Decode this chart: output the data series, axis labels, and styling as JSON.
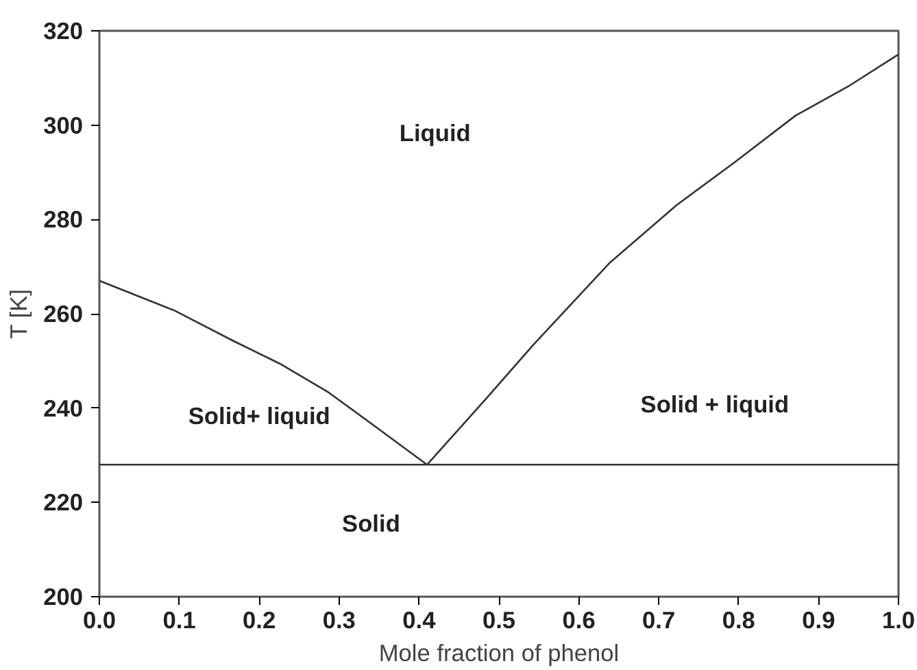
{
  "chart_data": {
    "type": "line",
    "xlabel": "Mole fraction of phenol",
    "ylabel": "T [K]",
    "xlim": [
      0,
      1
    ],
    "ylim": [
      200,
      320
    ],
    "xticks": [
      {
        "value": 0,
        "label": "0.0"
      },
      0.1,
      0.2,
      0.3,
      0.4,
      0.5,
      0.6,
      0.7,
      0.8,
      0.9,
      {
        "value": 1,
        "label": "1.0"
      }
    ],
    "yticks": [
      200,
      220,
      240,
      260,
      280,
      300,
      320
    ],
    "series": [
      {
        "color": "#333333",
        "x": [
          0,
          0.095,
          0.167,
          0.226,
          0.287,
          0.346,
          0.41
        ],
        "values": [
          267,
          260.6,
          254.3,
          249.4,
          243.3,
          236,
          228
        ]
      },
      {
        "color": "#333333",
        "x": [
          0.41,
          0.484,
          0.543,
          0.638,
          0.722,
          0.794,
          0.871,
          0.937,
          1.0
        ],
        "values": [
          228,
          242,
          253.4,
          270.7,
          283,
          292,
          302,
          308.2,
          315
        ]
      }
    ],
    "ref_lines": [
      {
        "axis": "y",
        "value": 228,
        "color": "#333333"
      }
    ],
    "annotations": [
      "Liquid",
      "Solid+ liquid",
      "Solid + liquid",
      "Solid"
    ],
    "grid": false,
    "line_style": "solid"
  }
}
